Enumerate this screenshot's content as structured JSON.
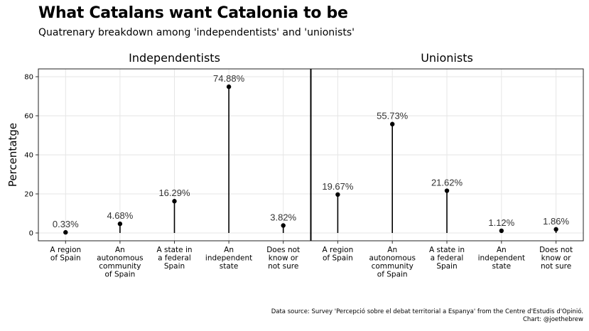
{
  "title": "What Catalans want Catalonia to be",
  "subtitle": "Quatrenary breakdown among 'independentists' and 'unionists'",
  "caption": {
    "line1": "Data source: Survey 'Percepció sobre el debat territorial a Espanya' from the Centre d'Estudis d'Opinió.",
    "line2": "Chart: @joethebrew"
  },
  "chart_data": {
    "type": "lollipop",
    "ylabel": "Percentatge",
    "ylim": [
      -4,
      84
    ],
    "yticks": [
      0,
      20,
      40,
      60,
      80
    ],
    "grid": true,
    "categories": [
      [
        "A region",
        "of Spain"
      ],
      [
        "An",
        "autonomous",
        "community",
        "of Spain"
      ],
      [
        "A state in",
        "a federal",
        "Spain"
      ],
      [
        "An",
        "independent",
        "state"
      ],
      [
        "Does not",
        "know or",
        "not sure"
      ]
    ],
    "panels": [
      {
        "name": "Independentists",
        "values": [
          0.33,
          4.68,
          16.29,
          74.88,
          3.82
        ],
        "labels": [
          "0.33%",
          "4.68%",
          "16.29%",
          "74.88%",
          "3.82%"
        ]
      },
      {
        "name": "Unionists",
        "values": [
          19.67,
          55.73,
          21.62,
          1.12,
          1.86
        ],
        "labels": [
          "19.67%",
          "55.73%",
          "21.62%",
          "1.12%",
          "1.86%"
        ]
      }
    ]
  }
}
